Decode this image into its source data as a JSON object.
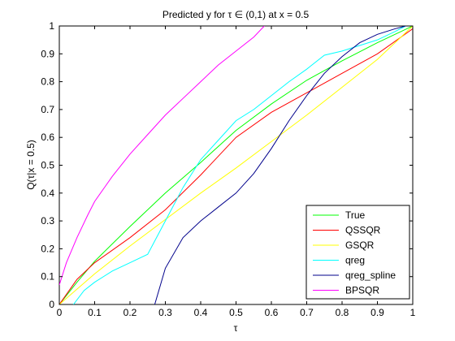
{
  "chart_data": {
    "type": "line",
    "title": "Predicted y for τ ∈ (0,1) at x = 0.5",
    "xlabel": "τ",
    "ylabel": "Q(τ|x = 0.5)",
    "xlim": [
      0,
      1
    ],
    "ylim": [
      0,
      1
    ],
    "xticks": [
      "0",
      "0.1",
      "0.2",
      "0.3",
      "0.4",
      "0.5",
      "0.6",
      "0.7",
      "0.8",
      "0.9",
      "1"
    ],
    "yticks": [
      "0",
      "0.1",
      "0.2",
      "0.3",
      "0.4",
      "0.5",
      "0.6",
      "0.7",
      "0.8",
      "0.9",
      "1"
    ],
    "grid": false,
    "legend_position": "bottom-right",
    "series": [
      {
        "name": "True",
        "color": "#00ff00",
        "x": [
          0,
          0.05,
          0.1,
          0.2,
          0.3,
          0.4,
          0.5,
          0.6,
          0.7,
          0.8,
          0.9,
          1.0
        ],
        "y": [
          0,
          0.08,
          0.155,
          0.28,
          0.4,
          0.51,
          0.625,
          0.72,
          0.805,
          0.875,
          0.94,
          1.0
        ]
      },
      {
        "name": "QSSQR",
        "color": "#ff0000",
        "x": [
          0,
          0.05,
          0.1,
          0.2,
          0.3,
          0.4,
          0.5,
          0.6,
          0.7,
          0.8,
          0.9,
          1.0
        ],
        "y": [
          0,
          0.09,
          0.15,
          0.24,
          0.34,
          0.465,
          0.6,
          0.69,
          0.76,
          0.83,
          0.9,
          0.99
        ]
      },
      {
        "name": "GSQR",
        "color": "#ffff00",
        "x": [
          0,
          0.1,
          0.2,
          0.3,
          0.4,
          0.5,
          0.6,
          0.7,
          0.8,
          0.9,
          1.0
        ],
        "y": [
          0,
          0.11,
          0.21,
          0.305,
          0.4,
          0.49,
          0.585,
          0.68,
          0.78,
          0.88,
          1.0
        ]
      },
      {
        "name": "qreg",
        "color": "#00ffff",
        "x": [
          0.04,
          0.07,
          0.1,
          0.15,
          0.2,
          0.25,
          0.3,
          0.35,
          0.4,
          0.45,
          0.5,
          0.55,
          0.6,
          0.65,
          0.7,
          0.75,
          0.8,
          0.85,
          0.9,
          0.95,
          0.98
        ],
        "y": [
          0,
          0.05,
          0.08,
          0.12,
          0.15,
          0.18,
          0.3,
          0.42,
          0.52,
          0.59,
          0.66,
          0.7,
          0.75,
          0.8,
          0.845,
          0.895,
          0.91,
          0.93,
          0.95,
          0.98,
          1.0
        ]
      },
      {
        "name": "qreg_spline",
        "color": "#00008b",
        "x": [
          0.27,
          0.3,
          0.35,
          0.4,
          0.45,
          0.5,
          0.55,
          0.6,
          0.65,
          0.7,
          0.75,
          0.8,
          0.85,
          0.9,
          0.95,
          0.98
        ],
        "y": [
          0,
          0.13,
          0.24,
          0.3,
          0.35,
          0.4,
          0.47,
          0.56,
          0.66,
          0.75,
          0.83,
          0.89,
          0.94,
          0.97,
          0.99,
          1.0
        ]
      },
      {
        "name": "BPSQR",
        "color": "#ff00ff",
        "x": [
          0,
          0.02,
          0.05,
          0.08,
          0.1,
          0.15,
          0.2,
          0.25,
          0.3,
          0.35,
          0.4,
          0.45,
          0.5,
          0.55,
          0.58
        ],
        "y": [
          0.07,
          0.15,
          0.24,
          0.32,
          0.37,
          0.46,
          0.54,
          0.61,
          0.68,
          0.74,
          0.8,
          0.86,
          0.91,
          0.96,
          1.0
        ]
      }
    ]
  }
}
